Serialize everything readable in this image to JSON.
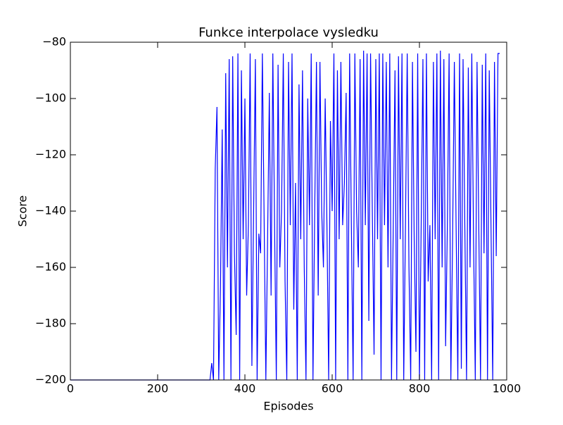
{
  "chart_data": {
    "type": "line",
    "title": "Funkce interpolace vysledku",
    "x_label": "Episodes",
    "y_label": "Score",
    "x": [
      0,
      320,
      324,
      328,
      332,
      336,
      340,
      344,
      348,
      352,
      356,
      360,
      364,
      368,
      372,
      376,
      380,
      384,
      388,
      392,
      396,
      400,
      404,
      408,
      412,
      416,
      420,
      424,
      428,
      432,
      436,
      440,
      444,
      448,
      452,
      456,
      460,
      464,
      468,
      472,
      476,
      480,
      484,
      488,
      492,
      496,
      500,
      504,
      508,
      512,
      516,
      520,
      524,
      528,
      532,
      536,
      540,
      544,
      548,
      552,
      556,
      560,
      564,
      568,
      572,
      576,
      580,
      584,
      588,
      592,
      596,
      600,
      604,
      608,
      612,
      616,
      620,
      624,
      628,
      632,
      636,
      640,
      644,
      648,
      652,
      656,
      660,
      664,
      668,
      672,
      676,
      680,
      684,
      688,
      692,
      696,
      700,
      704,
      708,
      712,
      716,
      720,
      724,
      728,
      732,
      736,
      740,
      744,
      748,
      752,
      756,
      760,
      764,
      768,
      772,
      776,
      780,
      784,
      788,
      792,
      796,
      800,
      804,
      808,
      812,
      816,
      820,
      824,
      828,
      832,
      836,
      840,
      844,
      848,
      852,
      856,
      860,
      864,
      868,
      872,
      876,
      880,
      884,
      888,
      892,
      896,
      900,
      904,
      908,
      912,
      916,
      920,
      924,
      928,
      932,
      936,
      940,
      944,
      948,
      952,
      956,
      960,
      964,
      968,
      972,
      976,
      980,
      984
    ],
    "series": [
      {
        "name": "Score",
        "color": "#0000ff",
        "values": [
          -200,
          -200,
          -194,
          -200,
          -125,
          -103,
          -200,
          -167,
          -111,
          -200,
          -91,
          -160,
          -86,
          -200,
          -85,
          -155,
          -184,
          -84,
          -200,
          -90,
          -150,
          -100,
          -170,
          -145,
          -84,
          -195,
          -140,
          -86,
          -200,
          -148,
          -155,
          -84,
          -142,
          -200,
          -150,
          -98,
          -170,
          -84,
          -145,
          -200,
          -88,
          -160,
          -140,
          -84,
          -165,
          -200,
          -87,
          -145,
          -84,
          -175,
          -130,
          -200,
          -95,
          -150,
          -90,
          -160,
          -200,
          -100,
          -145,
          -84,
          -200,
          -140,
          -87,
          -170,
          -87,
          -140,
          -160,
          -100,
          -145,
          -200,
          -108,
          -140,
          -84,
          -200,
          -90,
          -150,
          -87,
          -145,
          -130,
          -98,
          -200,
          -84,
          -145,
          -200,
          -84,
          -140,
          -160,
          -86,
          -200,
          -83,
          -145,
          -84,
          -179,
          -84,
          -140,
          -191,
          -86,
          -150,
          -84,
          -200,
          -84,
          -145,
          -87,
          -160,
          -84,
          -200,
          -145,
          -90,
          -200,
          -85,
          -150,
          -84,
          -200,
          -145,
          -84,
          -160,
          -200,
          -87,
          -150,
          -190,
          -84,
          -200,
          -145,
          -86,
          -200,
          -84,
          -165,
          -145,
          -200,
          -87,
          -150,
          -84,
          -200,
          -83,
          -160,
          -86,
          -188,
          -145,
          -84,
          -200,
          -150,
          -87,
          -145,
          -200,
          -84,
          -196,
          -86,
          -145,
          -200,
          -89,
          -160,
          -84,
          -150,
          -200,
          -87,
          -145,
          -200,
          -88,
          -155,
          -84,
          -200,
          -90,
          -145,
          -200,
          -87,
          -156,
          -84,
          -84
        ]
      }
    ],
    "xlim": [
      0,
      1000
    ],
    "ylim": [
      -200,
      -80
    ],
    "xticks": [
      0,
      200,
      400,
      600,
      800,
      1000
    ],
    "yticks": [
      {
        "value": -200,
        "label": "−200"
      },
      {
        "value": -180,
        "label": "−180"
      },
      {
        "value": -160,
        "label": "−160"
      },
      {
        "value": -140,
        "label": "−140"
      },
      {
        "value": -120,
        "label": "−120"
      },
      {
        "value": -100,
        "label": "−100"
      },
      {
        "value": -80,
        "label": "−80"
      }
    ]
  }
}
